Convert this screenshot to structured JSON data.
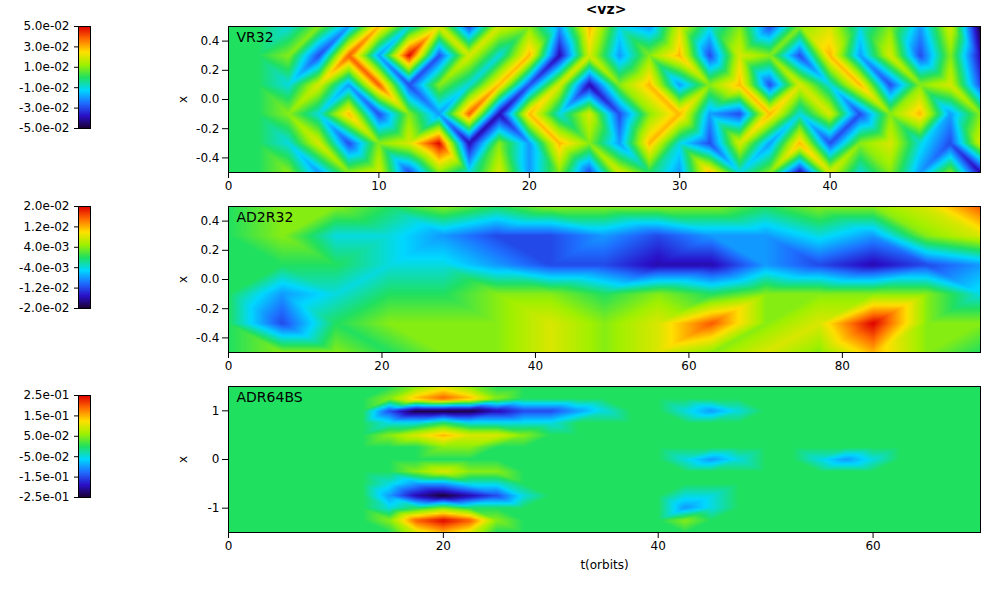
{
  "chart_data": [
    {
      "type": "heatmap",
      "title": "<vz>",
      "annotation": "VR32",
      "ylabel": "x",
      "xlim": [
        0,
        50
      ],
      "xticks": [
        0,
        10,
        20,
        30,
        40
      ],
      "ylim": [
        -0.5,
        0.5
      ],
      "yticks": [
        -0.4,
        -0.2,
        {
          "value": 0,
          "label": "0.0"
        },
        0.2,
        0.4
      ],
      "heatmap": {
        "t": [
          0,
          2,
          4,
          6,
          8,
          10,
          12,
          14,
          16,
          18,
          20,
          22,
          24,
          26,
          28,
          30,
          32,
          34,
          36,
          38,
          40,
          42,
          44,
          46,
          48,
          50
        ],
        "x": [
          -0.5,
          -0.3,
          -0.1,
          0.1,
          0.3,
          0.5
        ],
        "values": [
          [
            0,
            0,
            0.01,
            -0.02,
            0.01,
            0.02,
            -0.03,
            0.01,
            -0.01,
            0.02,
            -0.02,
            0.01,
            -0.03,
            0.02,
            0,
            -0.02,
            0.03,
            -0.01,
            0.01,
            -0.04,
            0.02,
            -0.01,
            0.01,
            -0.02,
            0.01,
            -0.04
          ],
          [
            0,
            0,
            -0.01,
            0.02,
            -0.03,
            0.01,
            0.02,
            0.05,
            -0.04,
            0.01,
            -0.02,
            0.03,
            0.01,
            -0.02,
            0.03,
            -0.01,
            -0.03,
            0.02,
            -0.02,
            0.03,
            -0.03,
            0.01,
            0.02,
            -0.01,
            -0.03,
            0.02
          ],
          [
            0,
            0,
            0.01,
            -0.01,
            0.03,
            -0.03,
            0.01,
            -0.02,
            0.04,
            -0.04,
            0.03,
            -0.01,
            0.02,
            -0.03,
            0.01,
            0.03,
            -0.02,
            -0.03,
            0.03,
            -0.01,
            0.02,
            -0.03,
            0.01,
            0.03,
            -0.02,
            0.01
          ],
          [
            0,
            0,
            -0.01,
            0.02,
            -0.02,
            0.04,
            -0.03,
            0.01,
            -0.01,
            0.03,
            -0.03,
            0.02,
            -0.04,
            0.01,
            0.03,
            -0.02,
            0.01,
            0.03,
            -0.03,
            0.02,
            -0.01,
            0.03,
            -0.03,
            0.01,
            0.02,
            -0.03
          ],
          [
            0,
            0,
            0.01,
            -0.03,
            0.04,
            -0.02,
            0.05,
            -0.03,
            0.02,
            -0.01,
            0.03,
            -0.04,
            0.02,
            -0.02,
            0.01,
            0.03,
            -0.03,
            0.02,
            0.01,
            -0.03,
            0.03,
            -0.02,
            0.02,
            -0.03,
            0.01,
            -0.04
          ],
          [
            0,
            0,
            -0.01,
            0.01,
            -0.02,
            0.03,
            -0.01,
            0.02,
            -0.03,
            0.02,
            0.01,
            -0.02,
            0.03,
            -0.01,
            -0.02,
            0.02,
            -0.01,
            0.01,
            -0.03,
            0.01,
            0.02,
            -0.01,
            0.01,
            -0.02,
            0.02,
            -0.05
          ]
        ]
      },
      "colorbar": {
        "range": [
          -0.05,
          0.05
        ],
        "ticks": [
          {
            "value": 0.05,
            "label": "5.0e-02"
          },
          {
            "value": 0.03,
            "label": "3.0e-02"
          },
          {
            "value": 0.01,
            "label": "1.0e-02"
          },
          {
            "value": -0.01,
            "label": "-1.0e-02"
          },
          {
            "value": -0.03,
            "label": "-3.0e-02"
          },
          {
            "value": -0.05,
            "label": "-5.0e-02"
          }
        ]
      }
    },
    {
      "type": "heatmap",
      "annotation": "AD2R32",
      "ylabel": "x",
      "xlim": [
        0,
        98
      ],
      "xticks": [
        0,
        20,
        40,
        60,
        80
      ],
      "ylim": [
        -0.5,
        0.5
      ],
      "yticks": [
        -0.4,
        -0.2,
        {
          "value": 0,
          "label": "0.0"
        },
        0.2,
        0.4
      ],
      "heatmap": {
        "t": [
          0,
          7,
          14,
          21,
          28,
          35,
          42,
          49,
          56,
          63,
          70,
          77,
          84,
          91,
          98
        ],
        "x": [
          -0.5,
          -0.3,
          -0.1,
          0.1,
          0.3,
          0.5
        ],
        "values": [
          [
            0,
            0.004,
            0.004,
            0,
            0.004,
            0.004,
            0.008,
            0.004,
            0.008,
            0.004,
            0.008,
            0.004,
            0.012,
            0.004,
            0
          ],
          [
            0,
            -0.012,
            0,
            0.004,
            0.004,
            0.004,
            0.008,
            0.004,
            0.008,
            0.016,
            0.004,
            0.008,
            0.02,
            0.004,
            0.004
          ],
          [
            0,
            -0.008,
            -0.004,
            0,
            0,
            0.004,
            0.004,
            0,
            0.004,
            0,
            0.004,
            0.004,
            0.004,
            0.004,
            -0.004
          ],
          [
            0,
            0,
            0,
            -0.004,
            -0.004,
            -0.008,
            -0.012,
            -0.012,
            -0.016,
            -0.016,
            -0.008,
            -0.012,
            -0.016,
            -0.012,
            -0.008
          ],
          [
            0,
            0.004,
            -0.004,
            -0.004,
            -0.008,
            -0.012,
            -0.012,
            -0.008,
            -0.012,
            -0.008,
            -0.008,
            -0.004,
            -0.008,
            0.004,
            0.008
          ],
          [
            0,
            0.004,
            0.004,
            0,
            0.004,
            0,
            0.004,
            0.004,
            0.004,
            0.004,
            0,
            0.004,
            0.004,
            0.008,
            0.016
          ]
        ]
      },
      "colorbar": {
        "range": [
          -0.02,
          0.02
        ],
        "ticks": [
          {
            "value": 0.02,
            "label": "2.0e-02"
          },
          {
            "value": 0.012,
            "label": "1.2e-02"
          },
          {
            "value": 0.004,
            "label": "4.0e-03"
          },
          {
            "value": -0.004,
            "label": "-4.0e-03"
          },
          {
            "value": -0.012,
            "label": "-1.2e-02"
          },
          {
            "value": -0.02,
            "label": "-2.0e-02"
          }
        ]
      }
    },
    {
      "type": "heatmap",
      "annotation": "ADR64BS",
      "ylabel": "x",
      "xlabel": "t(orbits)",
      "xlim": [
        0,
        70
      ],
      "xticks": [
        0,
        20,
        40,
        60
      ],
      "ylim": [
        -1.5,
        1.5
      ],
      "yticks": [
        -1,
        0,
        1
      ],
      "heatmap": {
        "t": [
          0,
          2.5,
          5,
          7.5,
          10,
          12.5,
          15,
          17.5,
          20,
          22.5,
          25,
          27.5,
          30,
          32.5,
          35,
          37.5,
          40,
          42.5,
          45,
          47.5,
          50,
          52.5,
          55,
          57.5,
          60,
          62.5,
          65,
          67.5,
          70
        ],
        "x": [
          -1.5,
          -1.25,
          -1,
          -0.75,
          -0.5,
          -0.25,
          0,
          0.25,
          0.5,
          0.75,
          1,
          1.25,
          1.5
        ],
        "values": [
          [
            0,
            0,
            0,
            0,
            0,
            0,
            0,
            0.1,
            0.15,
            0.1,
            0,
            0,
            0,
            0,
            0,
            0,
            0,
            0,
            0,
            0,
            0,
            0,
            0,
            0,
            0,
            0,
            0,
            0,
            0
          ],
          [
            0,
            0,
            0,
            0,
            0,
            0,
            0.05,
            0.2,
            0.25,
            0.2,
            0.05,
            0,
            0,
            0,
            0,
            0,
            0,
            0.05,
            0,
            0,
            0,
            0,
            0,
            0,
            0,
            0,
            0,
            0,
            0
          ],
          [
            0,
            0,
            0,
            0,
            0,
            0,
            -0.05,
            0,
            0.05,
            0,
            0,
            0,
            0,
            0,
            0,
            0,
            0,
            -0.1,
            -0.05,
            0,
            0,
            0,
            0,
            0,
            0,
            0,
            0,
            0,
            0
          ],
          [
            0,
            0,
            0,
            0,
            0,
            0,
            -0.1,
            -0.2,
            -0.25,
            -0.2,
            -0.15,
            -0.05,
            0,
            0,
            0,
            0,
            0,
            -0.05,
            -0.05,
            0,
            0,
            0,
            0,
            0,
            0,
            0,
            0,
            0,
            0
          ],
          [
            0,
            0,
            0,
            0,
            0,
            0,
            -0.05,
            -0.1,
            -0.1,
            -0.05,
            -0.05,
            0,
            0,
            0,
            0,
            0,
            0,
            0,
            0,
            0,
            0,
            0,
            0,
            0,
            0,
            0,
            0,
            0,
            0
          ],
          [
            0,
            0,
            0,
            0,
            0,
            0,
            0,
            0.05,
            0.1,
            0.05,
            0.05,
            0,
            0,
            0,
            0,
            0,
            0,
            0,
            0,
            0,
            0,
            0,
            0,
            0,
            0,
            0,
            0,
            0,
            0
          ],
          [
            0,
            0,
            0,
            0,
            0,
            0,
            0,
            0,
            0,
            0,
            0,
            0,
            0,
            0,
            0,
            0,
            0,
            -0.05,
            -0.1,
            -0.05,
            0,
            0,
            -0.05,
            -0.1,
            -0.05,
            0,
            0,
            0,
            0
          ],
          [
            0,
            0,
            0,
            0,
            0,
            0,
            0,
            0,
            0.05,
            0.05,
            0,
            0,
            0,
            0,
            0,
            0,
            0,
            0,
            0,
            0,
            0,
            0,
            0,
            0,
            0,
            0,
            0,
            0,
            0
          ],
          [
            0,
            0,
            0,
            0,
            0,
            0,
            0.05,
            0.1,
            0.15,
            0.1,
            0.1,
            0.05,
            0,
            0,
            0,
            0,
            0,
            0,
            0,
            0,
            0,
            0,
            0,
            0,
            0,
            0,
            0,
            0,
            0
          ],
          [
            0,
            0,
            0,
            0,
            0,
            0,
            -0.05,
            -0.05,
            0,
            -0.05,
            -0.05,
            -0.05,
            -0.05,
            0,
            0,
            0,
            0,
            0,
            0,
            0,
            0,
            0,
            0,
            0,
            0,
            0,
            0,
            0,
            0
          ],
          [
            0,
            0,
            0,
            0,
            0,
            0,
            -0.15,
            -0.25,
            -0.25,
            -0.25,
            -0.2,
            -0.15,
            -0.15,
            -0.1,
            -0.05,
            0,
            0,
            -0.05,
            -0.1,
            -0.05,
            0,
            0,
            0,
            0,
            0,
            0,
            0,
            0,
            0
          ],
          [
            0,
            0,
            0,
            0,
            0,
            0,
            0.05,
            0.15,
            0.2,
            0.15,
            0.05,
            0,
            0,
            0,
            0,
            0,
            0,
            0,
            0,
            0,
            0,
            0,
            0,
            0,
            0,
            0,
            0,
            0,
            0
          ],
          [
            0,
            0,
            0,
            0,
            0,
            0,
            0,
            0.05,
            0.1,
            0.05,
            0,
            0,
            0,
            0,
            0,
            0,
            0,
            0,
            0,
            0,
            0,
            0,
            0,
            0,
            0,
            0,
            0,
            0,
            0
          ]
        ]
      },
      "colorbar": {
        "range": [
          -0.25,
          0.25
        ],
        "ticks": [
          {
            "value": 0.25,
            "label": "2.5e-01"
          },
          {
            "value": 0.15,
            "label": "1.5e-01"
          },
          {
            "value": 0.05,
            "label": "5.0e-02"
          },
          {
            "value": -0.05,
            "label": "-5.0e-02"
          },
          {
            "value": -0.15,
            "label": "-1.5e-01"
          },
          {
            "value": -0.25,
            "label": "-2.5e-01"
          }
        ]
      }
    }
  ]
}
